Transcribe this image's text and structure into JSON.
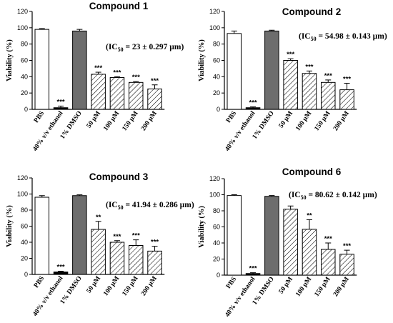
{
  "figure": {
    "categories": [
      "PBS",
      "40% v/v ethanol",
      "1% DMSO",
      "50 µM",
      "100 µM",
      "150 µM",
      "200 µM"
    ],
    "bar_styles": [
      "white",
      "black",
      "gray",
      "hatched",
      "hatched",
      "hatched",
      "hatched"
    ],
    "colors": {
      "axis": "#000000",
      "gray_bar": "#6d6d6d",
      "bar_fill": "#ffffff",
      "hatch": "#000000"
    }
  },
  "chart_data": [
    {
      "type": "bar",
      "title": "Compound 1",
      "ylabel": "Viability (%)",
      "ylim": [
        0,
        120
      ],
      "yticks": [
        "0",
        "20",
        "40",
        "60",
        "80",
        "100",
        "120"
      ],
      "annotation": {
        "prefix": "(IC",
        "sub": "50",
        "suffix": " = 23 ± 0.297 µm)"
      },
      "values": [
        98,
        2,
        96,
        43,
        39,
        33,
        25
      ],
      "errors": [
        1,
        2,
        2,
        2.5,
        1,
        1,
        5
      ],
      "significance": [
        "",
        "***",
        "",
        "***",
        "***",
        "***",
        "***"
      ]
    },
    {
      "type": "bar",
      "title": "Compound 2",
      "ylabel": "Viability (%)",
      "ylim": [
        0,
        120
      ],
      "yticks": [
        "0",
        "20",
        "40",
        "60",
        "80",
        "100",
        "120"
      ],
      "annotation": {
        "prefix": "(IC",
        "sub": "50",
        "suffix": " = 54.98 ± 0.143 µm)"
      },
      "values": [
        93,
        2,
        96,
        60,
        44,
        33,
        24
      ],
      "errors": [
        3,
        1,
        1,
        2,
        3,
        3,
        8
      ],
      "significance": [
        "",
        "***",
        "",
        "***",
        "***",
        "***",
        "***"
      ]
    },
    {
      "type": "bar",
      "title": "Compound 3",
      "ylabel": "Viability (%)",
      "ylim": [
        0,
        120
      ],
      "yticks": [
        "0",
        "20",
        "40",
        "60",
        "80",
        "100",
        "120"
      ],
      "annotation": {
        "prefix": "(IC",
        "sub": "50",
        "suffix": " = 41.94 ± 0.286 µm)"
      },
      "values": [
        96,
        3,
        98,
        56,
        40,
        36,
        29
      ],
      "errors": [
        2,
        1,
        1,
        10,
        2,
        7,
        6
      ],
      "significance": [
        "",
        "***",
        "",
        "**",
        "***",
        "***",
        "***"
      ]
    },
    {
      "type": "bar",
      "title": "Compound 6",
      "ylabel": "Viability (%)",
      "ylim": [
        0,
        120
      ],
      "yticks": [
        "0",
        "20",
        "40",
        "60",
        "80",
        "100",
        "120"
      ],
      "annotation": {
        "prefix": "(IC",
        "sub": "50",
        "suffix": " = 80.62 ± 0.142 µm)"
      },
      "values": [
        99,
        2,
        98,
        82,
        57,
        32,
        26
      ],
      "errors": [
        1,
        1,
        1,
        4,
        12,
        8,
        5
      ],
      "significance": [
        "",
        "***",
        "",
        "",
        "**",
        "***",
        "***"
      ]
    }
  ]
}
